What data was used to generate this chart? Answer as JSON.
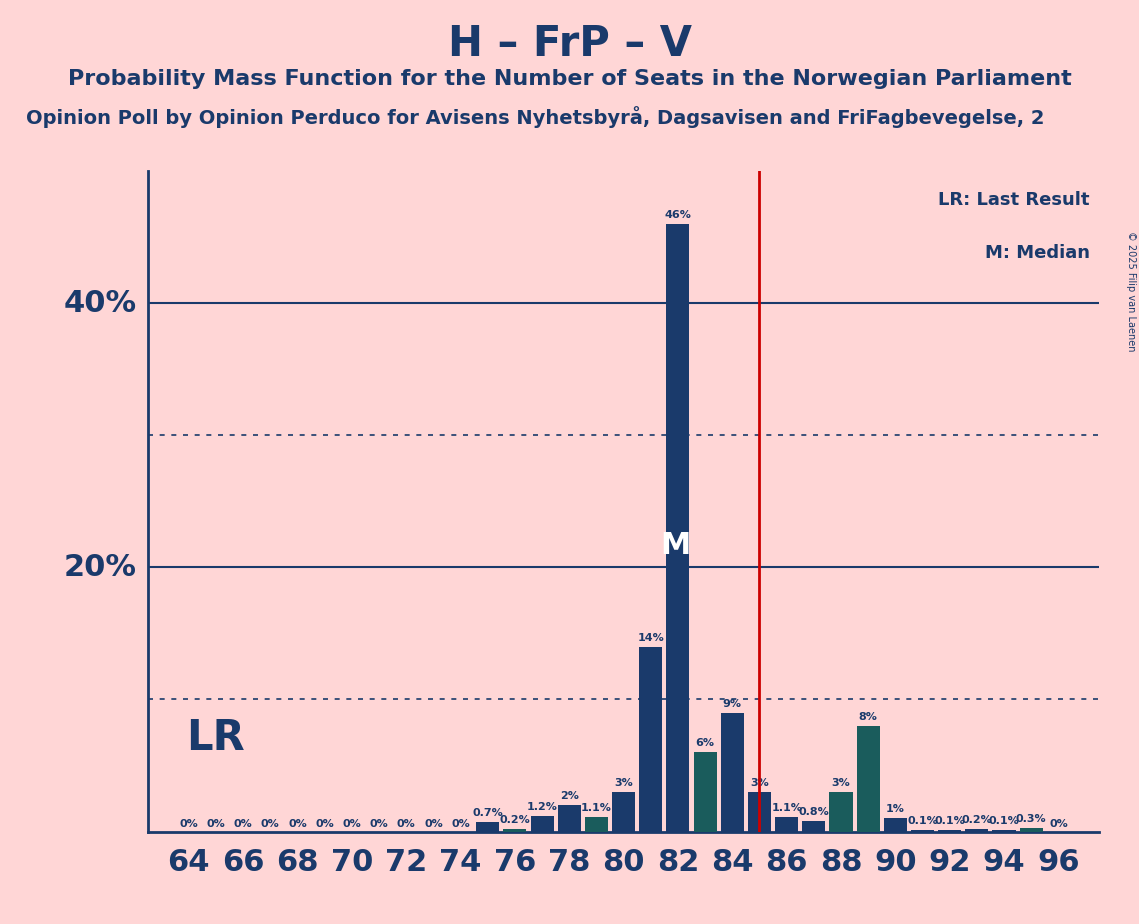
{
  "title": "H – FrP – V",
  "subtitle": "Probability Mass Function for the Number of Seats in the Norwegian Parliament",
  "subtitle2": "Opinion Poll by Opinion Perduco for Avisens Nyhetsbyrå, Dagsavisen and FriFagbevegelse, 2",
  "copyright": "© 2025 Filip van Laenen",
  "background_color": "#ffd6d6",
  "bar_color_blue": "#1a3a6b",
  "bar_color_teal": "#1a5c5c",
  "lr_line_color": "#cc0000",
  "grid_color": "#1a3a6b",
  "text_color": "#1a3a6b",
  "seats": [
    64,
    65,
    66,
    67,
    68,
    69,
    70,
    71,
    72,
    73,
    74,
    75,
    76,
    77,
    78,
    79,
    80,
    81,
    82,
    83,
    84,
    85,
    86,
    87,
    88,
    89,
    90,
    91,
    92,
    93,
    94,
    95,
    96
  ],
  "probabilities": [
    0.0,
    0.0,
    0.0,
    0.0,
    0.0,
    0.0,
    0.0,
    0.0,
    0.0,
    0.0,
    0.0,
    0.7,
    0.2,
    1.2,
    2.0,
    1.1,
    3.0,
    14.0,
    46.0,
    6.0,
    9.0,
    3.0,
    1.1,
    0.8,
    3.0,
    8.0,
    1.0,
    0.1,
    0.1,
    0.2,
    0.1,
    0.3,
    0.0
  ],
  "bar_colors": [
    "blue",
    "blue",
    "blue",
    "blue",
    "blue",
    "blue",
    "blue",
    "blue",
    "blue",
    "blue",
    "blue",
    "blue",
    "teal",
    "blue",
    "blue",
    "teal",
    "blue",
    "blue",
    "blue",
    "teal",
    "blue",
    "blue",
    "blue",
    "blue",
    "teal",
    "teal",
    "blue",
    "blue",
    "blue",
    "blue",
    "blue",
    "teal",
    "teal"
  ],
  "lr_seat": 85,
  "median_seat": 82,
  "ylim": [
    0,
    50
  ],
  "solid_gridlines": [
    20,
    40
  ],
  "dotted_gridlines": [
    10,
    30
  ],
  "legend_lr": "LR: Last Result",
  "legend_m": "M: Median",
  "legend_lr_label": "LR",
  "title_fontsize": 30,
  "subtitle_fontsize": 16,
  "subtitle2_fontsize": 14,
  "label_fontsize": 8,
  "ytick_fontsize": 22,
  "xtick_fontsize": 22
}
